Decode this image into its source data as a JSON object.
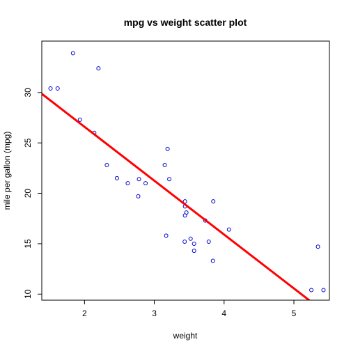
{
  "chart_data": {
    "type": "scatter",
    "title": "mpg vs weight scatter plot",
    "xlabel": "weight",
    "ylabel": "mile per gallon (mpg)",
    "xlim": [
      1.388,
      5.509
    ],
    "ylim": [
      9.4,
      35.1
    ],
    "xticks": [
      2,
      3,
      4,
      5
    ],
    "yticks": [
      10,
      15,
      20,
      25,
      30
    ],
    "grid": false,
    "legend": "none",
    "point_color": "#0000cd",
    "line_color": "#ff0000",
    "series": [
      {
        "x": [
          2.62,
          2.875,
          2.32,
          3.215,
          3.44,
          3.46,
          3.57,
          3.19,
          3.15,
          3.44,
          3.44,
          4.07,
          3.73,
          3.78,
          5.25,
          5.424,
          5.345,
          2.2,
          1.615,
          1.835,
          2.465,
          3.52,
          3.435,
          3.84,
          3.845,
          1.935,
          2.14,
          1.513,
          3.17,
          2.77,
          3.57,
          2.78
        ],
        "y": [
          21.0,
          21.0,
          22.8,
          21.4,
          18.7,
          18.1,
          14.3,
          24.4,
          22.8,
          19.2,
          17.8,
          16.4,
          17.3,
          15.2,
          10.4,
          10.4,
          14.7,
          32.4,
          30.4,
          33.9,
          21.5,
          15.5,
          15.2,
          13.3,
          19.2,
          27.3,
          26.0,
          30.4,
          15.8,
          19.7,
          15.0,
          21.4
        ]
      }
    ],
    "fit_line": {
      "intercept": 37.285,
      "slope": -5.344
    }
  }
}
